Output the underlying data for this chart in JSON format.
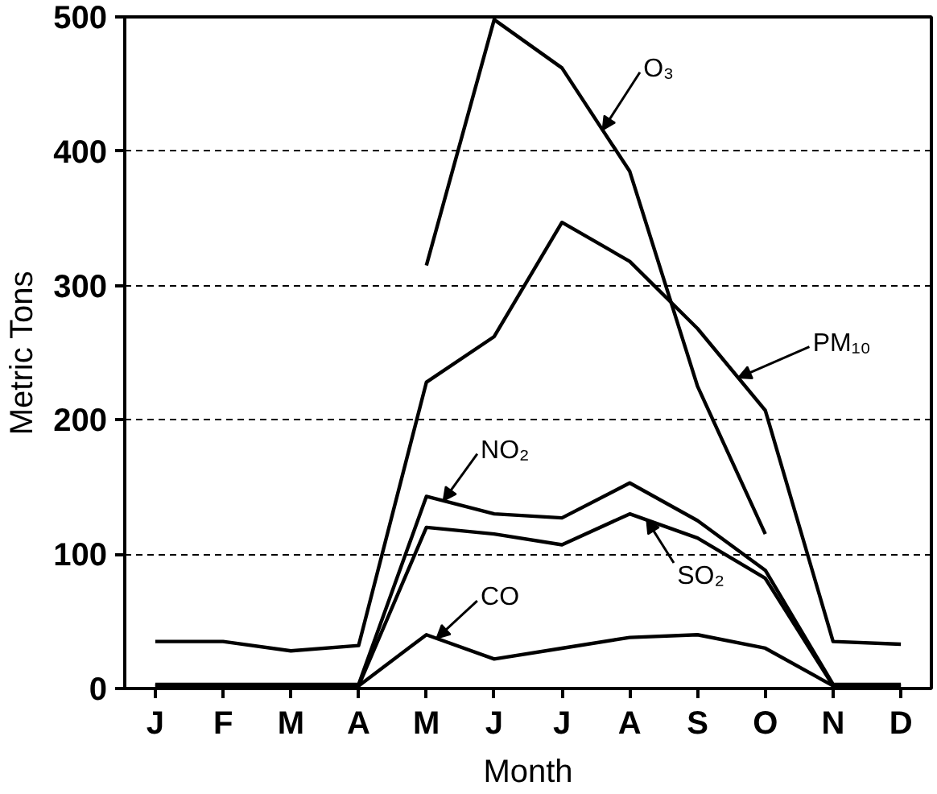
{
  "chart_data": {
    "type": "line",
    "xlabel": "Month",
    "ylabel": "Metric Tons",
    "categories": [
      "J",
      "F",
      "M",
      "A",
      "M",
      "J",
      "J",
      "A",
      "S",
      "O",
      "N",
      "D"
    ],
    "ylim": [
      0,
      500
    ],
    "yticks": [
      0,
      100,
      200,
      300,
      400,
      500
    ],
    "grid": "y",
    "line_style": "solid",
    "series": [
      {
        "name": "O₃",
        "color": "#000000",
        "values": [
          null,
          null,
          null,
          null,
          315,
          498,
          462,
          385,
          225,
          115,
          null,
          null
        ]
      },
      {
        "name": "PM₁₀",
        "color": "#000000",
        "values": [
          35,
          35,
          28,
          32,
          228,
          262,
          347,
          318,
          268,
          207,
          35,
          33
        ]
      },
      {
        "name": "NO₂",
        "color": "#000000",
        "values": [
          3,
          3,
          3,
          3,
          143,
          130,
          127,
          153,
          125,
          88,
          3,
          3
        ]
      },
      {
        "name": "SO₂",
        "color": "#000000",
        "values": [
          2,
          2,
          2,
          2,
          120,
          115,
          107,
          130,
          112,
          82,
          2,
          2
        ]
      },
      {
        "name": "CO",
        "color": "#000000",
        "values": [
          2,
          2,
          2,
          2,
          40,
          22,
          30,
          38,
          40,
          30,
          2,
          2
        ]
      }
    ]
  }
}
